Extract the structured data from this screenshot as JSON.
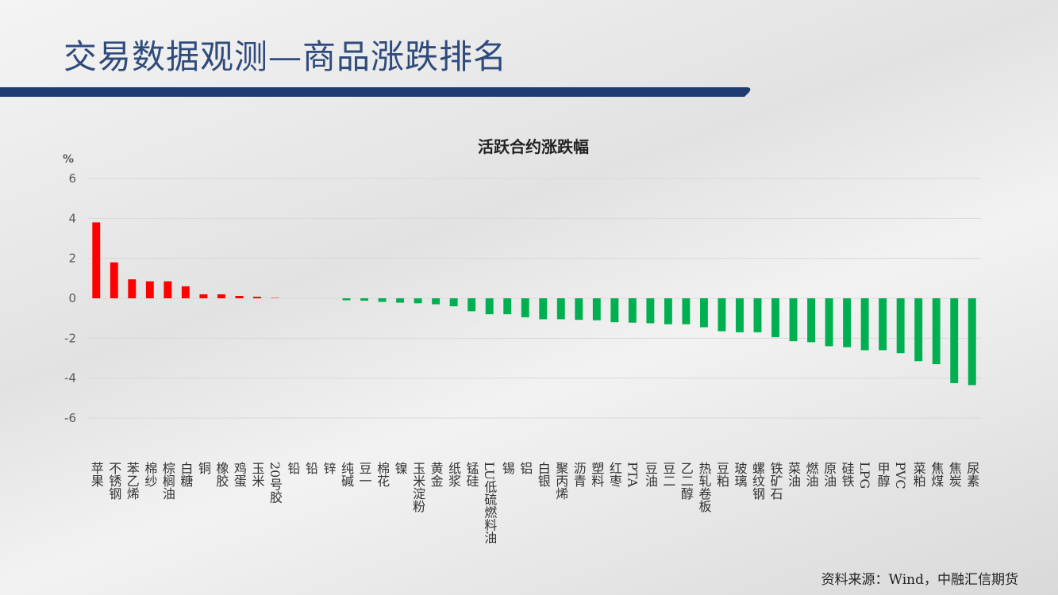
{
  "header": {
    "title": "交易数据观测—商品涨跌排名"
  },
  "chart_data": {
    "type": "bar",
    "title": "活跃合约涨跌幅",
    "y_label": "%",
    "categories": [
      "苹果",
      "不锈钢",
      "苯乙烯",
      "棉纱",
      "棕榈油",
      "白糖",
      "铜",
      "橡胶",
      "鸡蛋",
      "玉米",
      "20号胶",
      "铅",
      "铅",
      "锌",
      "纯碱",
      "豆一",
      "棉花",
      "镍",
      "玉米淀粉",
      "黄金",
      "纸浆",
      "锰硅",
      "LU低硫燃料油",
      "锡",
      "铝",
      "白银",
      "聚丙烯",
      "沥青",
      "塑料",
      "红枣",
      "PTA",
      "豆油",
      "豆二",
      "乙二醇",
      "热轧卷板",
      "豆粕",
      "玻璃",
      "螺纹钢",
      "铁矿石",
      "菜油",
      "燃油",
      "原油",
      "硅铁",
      "LPG",
      "甲醇",
      "PVC",
      "菜粕",
      "焦煤",
      "焦炭",
      "尿素"
    ],
    "values": [
      3.8,
      1.8,
      0.95,
      0.85,
      0.85,
      0.6,
      0.2,
      0.2,
      0.12,
      0.08,
      0.02,
      0,
      0,
      0,
      -0.1,
      -0.12,
      -0.18,
      -0.22,
      -0.25,
      -0.3,
      -0.4,
      -0.65,
      -0.8,
      -0.8,
      -0.95,
      -1.05,
      -1.05,
      -1.08,
      -1.1,
      -1.2,
      -1.22,
      -1.25,
      -1.3,
      -1.3,
      -1.45,
      -1.65,
      -1.7,
      -1.7,
      -1.95,
      -2.15,
      -2.2,
      -2.4,
      -2.45,
      -2.6,
      -2.6,
      -2.75,
      -3.15,
      -3.3,
      -4.25,
      -4.35
    ],
    "positive_color": "#ff0000",
    "negative_color": "#00b050",
    "ylim": [
      -6,
      6
    ],
    "yticks": [
      6,
      4,
      2,
      0,
      -2,
      -4,
      -6
    ],
    "grid": true
  },
  "footer": {
    "source": "资料来源：Wind，中融汇信期货"
  }
}
